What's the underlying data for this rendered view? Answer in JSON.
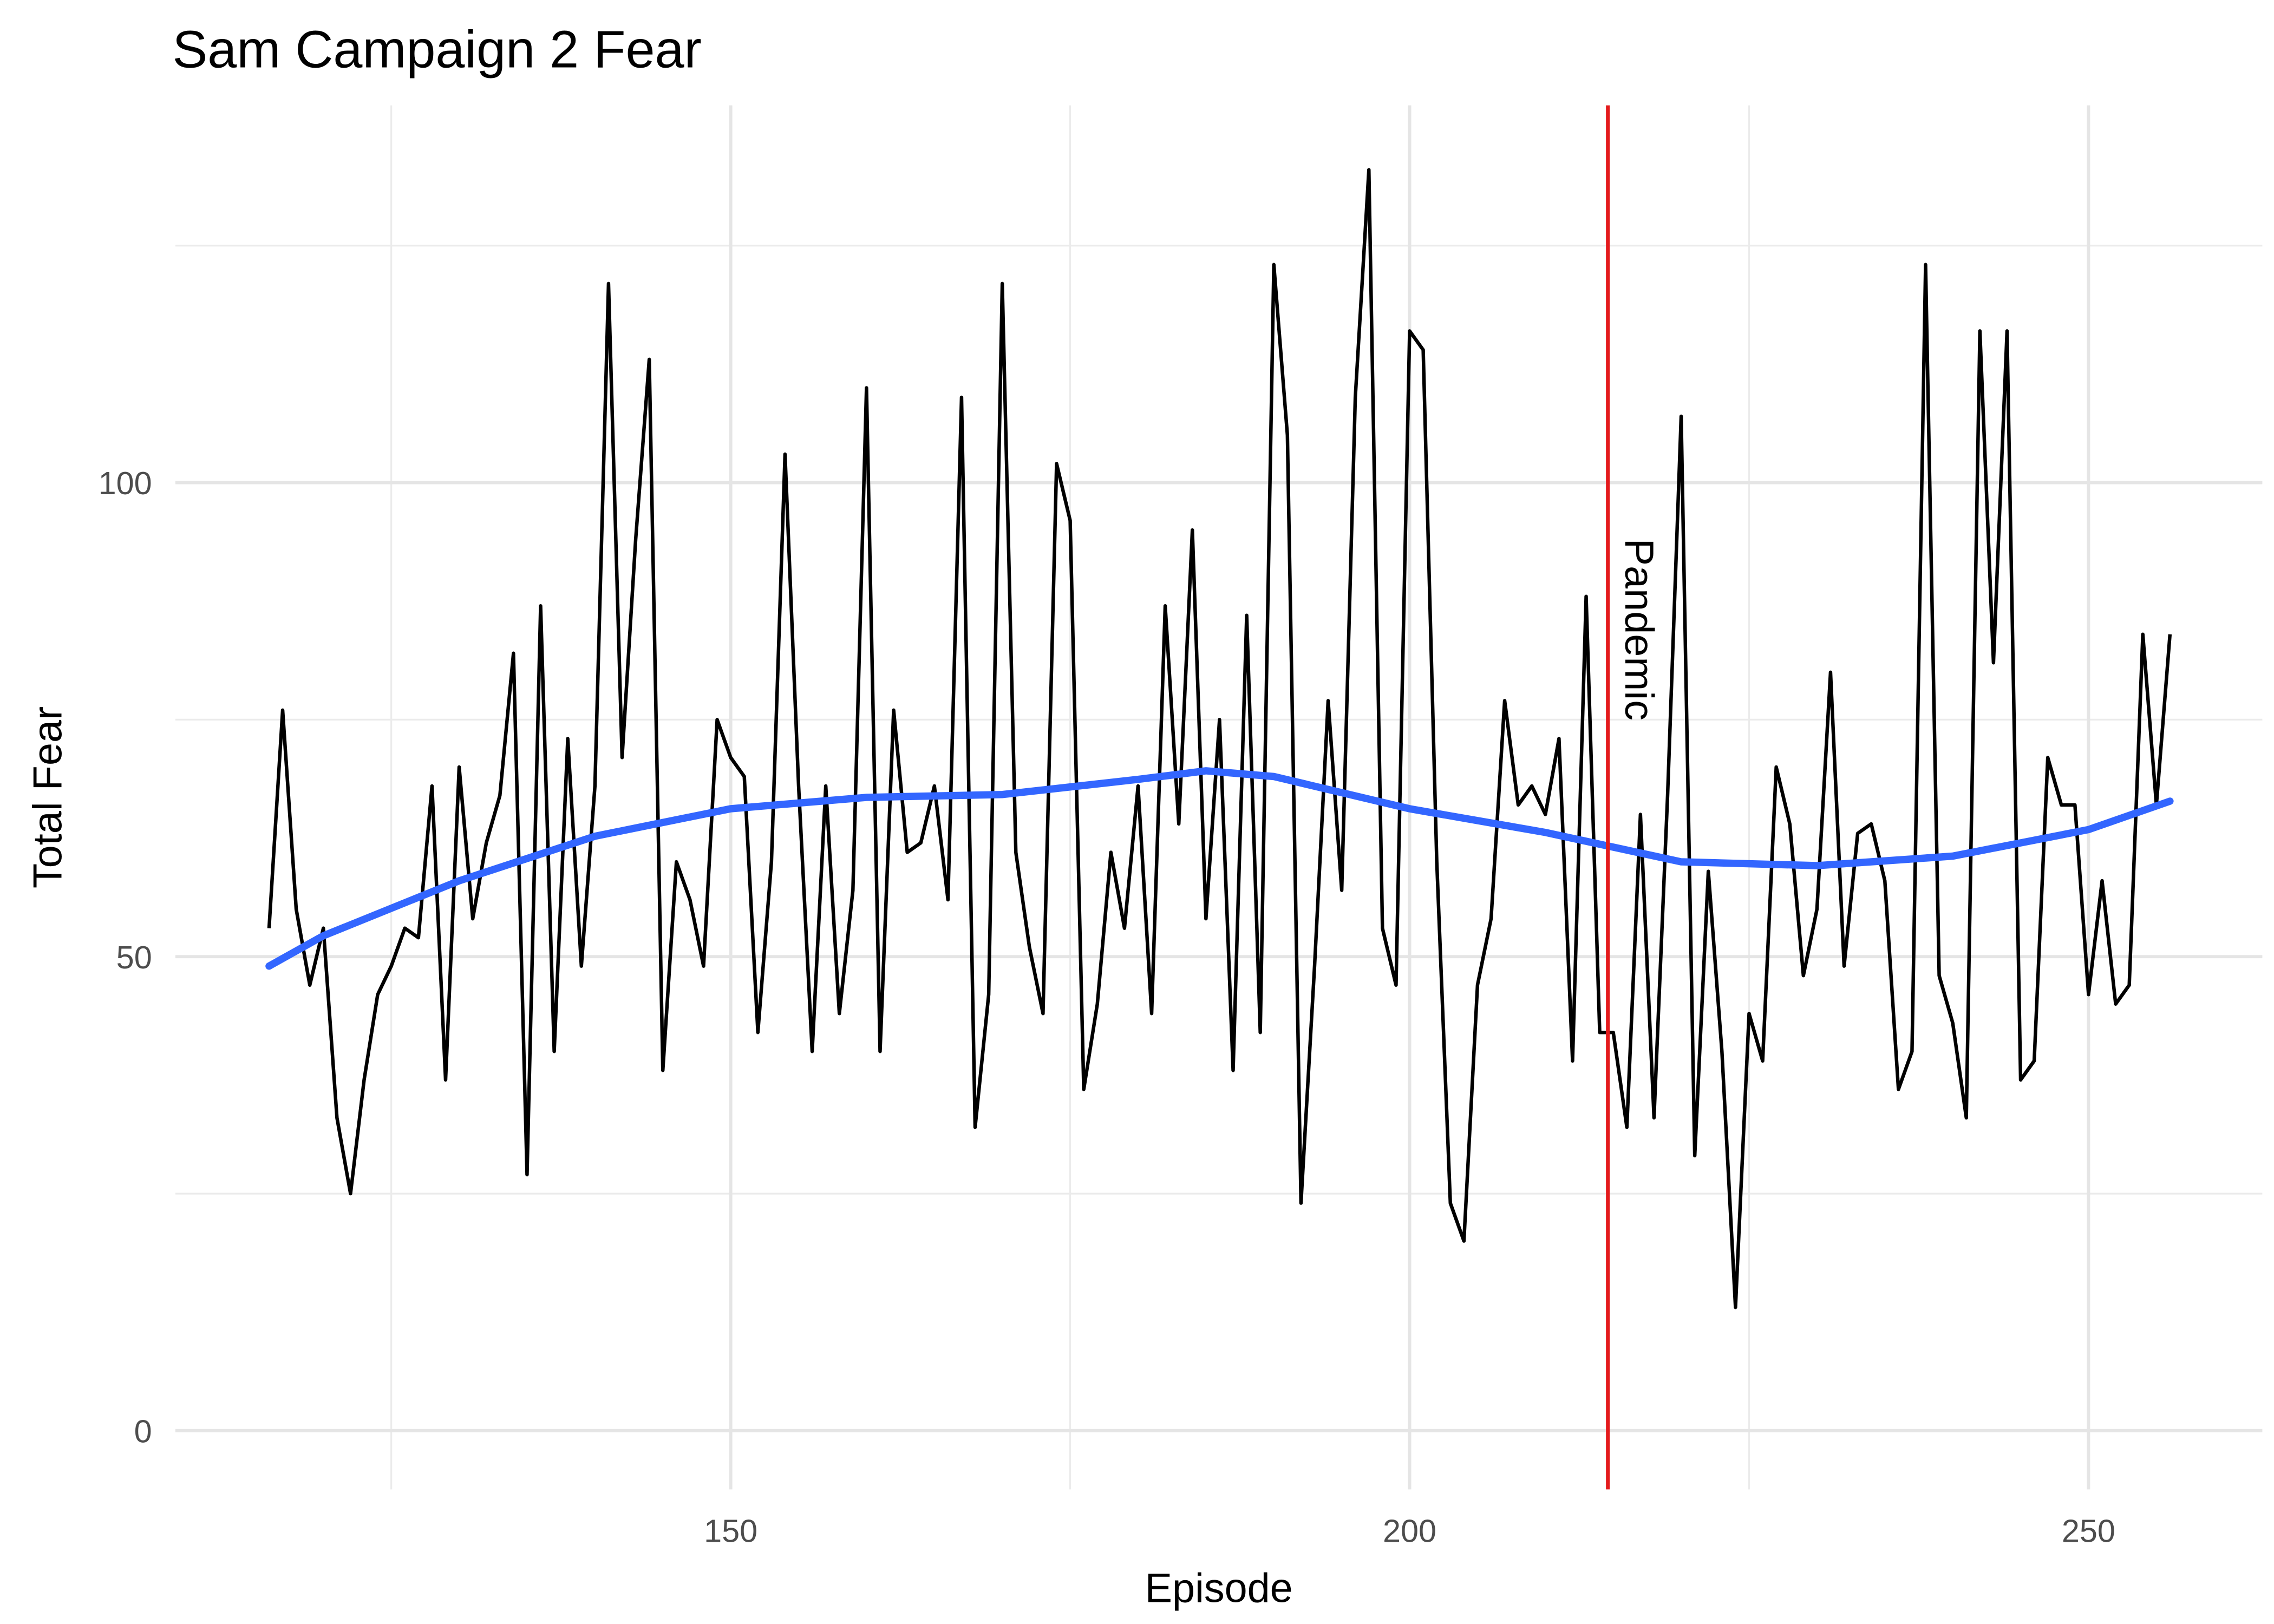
{
  "chart_data": {
    "type": "line",
    "title": "Sam Campaign 2 Fear",
    "x_label": "Episode",
    "y_label": "Total Fear",
    "x": [
      116,
      117,
      118,
      119,
      120,
      121,
      122,
      123,
      124,
      125,
      126,
      127,
      128,
      129,
      130,
      131,
      132,
      133,
      134,
      135,
      136,
      137,
      138,
      139,
      140,
      141,
      142,
      143,
      144,
      145,
      146,
      147,
      148,
      149,
      150,
      151,
      152,
      153,
      154,
      155,
      156,
      157,
      158,
      159,
      160,
      161,
      162,
      163,
      164,
      165,
      166,
      167,
      168,
      169,
      170,
      171,
      172,
      173,
      174,
      175,
      176,
      177,
      178,
      179,
      180,
      181,
      182,
      183,
      184,
      185,
      186,
      187,
      188,
      189,
      190,
      191,
      192,
      193,
      194,
      195,
      196,
      197,
      198,
      199,
      200,
      201,
      202,
      203,
      204,
      205,
      206,
      207,
      208,
      209,
      210,
      211,
      212,
      213,
      214,
      215,
      216,
      217,
      218,
      219,
      220,
      221,
      222,
      223,
      224,
      225,
      226,
      227,
      228,
      229,
      230,
      231,
      232,
      233,
      234,
      235,
      236,
      237,
      238,
      239,
      240,
      241,
      242,
      243,
      244,
      245,
      246,
      247,
      248,
      249,
      250,
      251,
      252,
      253,
      254,
      255,
      256
    ],
    "series": [
      {
        "color": "#000000",
        "values": [
          53,
          76,
          55,
          47,
          53,
          33,
          25,
          37,
          46,
          49,
          53,
          52,
          68,
          37,
          70,
          54,
          62,
          67,
          82,
          27,
          87,
          40,
          73,
          49,
          68,
          121,
          71,
          94,
          113,
          38,
          60,
          56,
          49,
          75,
          71,
          69,
          42,
          60,
          103,
          68,
          40,
          68,
          44,
          57,
          110,
          40,
          76,
          61,
          62,
          68,
          56,
          109,
          32,
          46,
          121,
          61,
          51,
          44,
          102,
          96,
          36,
          45,
          61,
          53,
          68,
          44,
          87,
          64,
          95,
          54,
          75,
          38,
          86,
          42,
          123,
          105,
          24,
          49,
          77,
          57,
          109,
          133,
          53,
          47,
          116,
          114,
          60,
          24,
          20,
          47,
          54,
          77,
          66,
          68,
          65,
          73,
          39,
          88,
          42,
          42,
          32,
          65,
          33,
          67,
          107,
          29,
          59,
          40,
          13,
          44,
          39,
          70,
          64,
          48,
          55,
          80,
          49,
          63,
          64,
          58,
          36,
          40,
          123,
          48,
          43,
          33,
          116,
          81,
          116,
          37,
          39,
          71,
          66,
          66,
          46,
          58,
          45,
          47,
          84,
          66,
          84
        ]
      }
    ],
    "trend": {
      "color": "#3366ff",
      "x": [
        116,
        120,
        130,
        140,
        150,
        160,
        170,
        180,
        185,
        190,
        200,
        210,
        220,
        230,
        240,
        250,
        256
      ],
      "values": [
        49,
        52.2,
        58,
        62.7,
        65.6,
        66.8,
        67.1,
        68.7,
        69.6,
        69,
        65.6,
        63.1,
        60,
        59.6,
        60.6,
        63.4,
        66.4
      ]
    },
    "vline": {
      "x": 214.6,
      "color": "#e41a1c",
      "label": "Pandemic"
    },
    "xlim": [
      109.1,
      262.8
    ],
    "ylim": [
      -6.2,
      139.8
    ],
    "xticks": [
      150,
      200,
      250
    ],
    "yticks": [
      0,
      50,
      100
    ],
    "xminor": [
      125,
      175,
      225
    ],
    "yminor": [
      25,
      75,
      125
    ],
    "grid": true
  }
}
